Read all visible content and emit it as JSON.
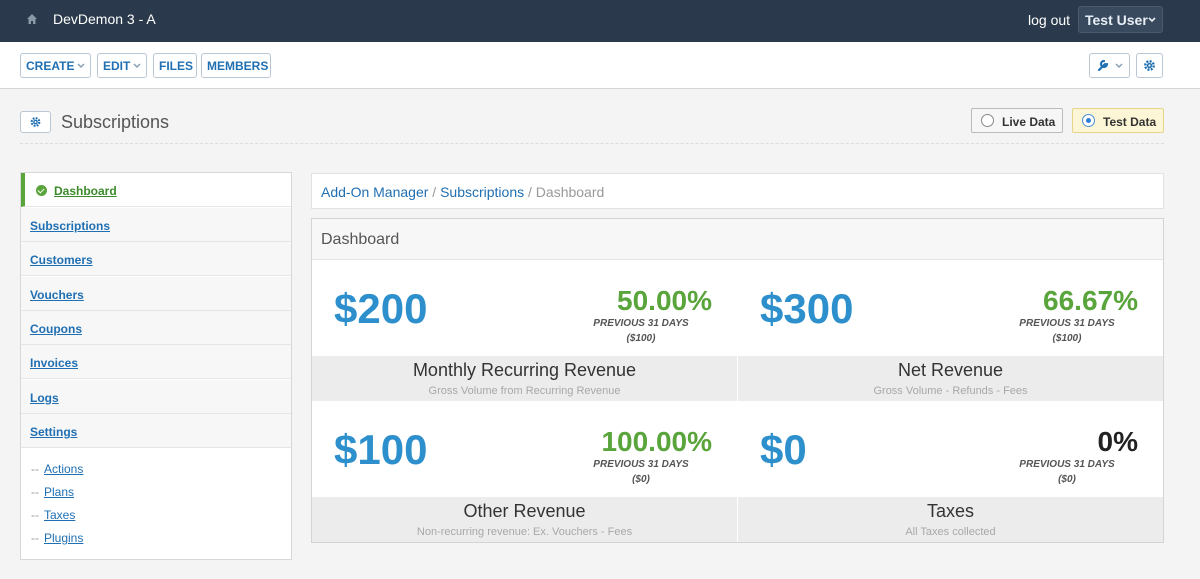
{
  "topbar": {
    "title": "DevDemon 3 - A",
    "logout_label": "log out",
    "user_label": "Test User"
  },
  "toolbar": {
    "create_label": "CREATE",
    "edit_label": "EDIT",
    "files_label": "FILES",
    "members_label": "MEMBERS"
  },
  "header": {
    "title": "Subscriptions",
    "live_label": "Live Data",
    "test_label": "Test Data",
    "selected": "Test Data"
  },
  "sidebar": {
    "items": [
      {
        "label": "Dashboard",
        "active": true
      },
      {
        "label": "Subscriptions"
      },
      {
        "label": "Customers"
      },
      {
        "label": "Vouchers"
      },
      {
        "label": "Coupons"
      },
      {
        "label": "Invoices"
      },
      {
        "label": "Logs"
      },
      {
        "label": "Settings"
      }
    ],
    "sub_items": [
      {
        "label": "Actions"
      },
      {
        "label": "Plans"
      },
      {
        "label": "Taxes"
      },
      {
        "label": "Plugins"
      }
    ]
  },
  "breadcrumb": {
    "part1": "Add-On Manager",
    "part2": "Subscriptions",
    "current": "Dashboard",
    "separator": "/"
  },
  "dashboard": {
    "title": "Dashboard",
    "cards": [
      {
        "amount": "$200",
        "percent": "50.00%",
        "period": "PREVIOUS 31 DAYS",
        "previous": "($100)",
        "title": "Monthly Recurring Revenue",
        "subtitle": "Gross Volume from Recurring Revenue",
        "percent_color": "#5aa43c"
      },
      {
        "amount": "$300",
        "percent": "66.67%",
        "period": "PREVIOUS 31 DAYS",
        "previous": "($100)",
        "title": "Net Revenue",
        "subtitle": "Gross Volume - Refunds - Fees",
        "percent_color": "#5aa43c"
      },
      {
        "amount": "$100",
        "percent": "100.00%",
        "period": "PREVIOUS 31 DAYS",
        "previous": "($0)",
        "title": "Other Revenue",
        "subtitle": "Non-recurring revenue: Ex. Vouchers - Fees",
        "percent_color": "#5aa43c"
      },
      {
        "amount": "$0",
        "percent": "0%",
        "period": "PREVIOUS 31 DAYS",
        "previous": "($0)",
        "title": "Taxes",
        "subtitle": "All Taxes collected",
        "percent_color": "#222222"
      }
    ]
  },
  "colors": {
    "topbar": "#2a3a4c",
    "accent": "#1f6fb2",
    "amount": "#2d90cc",
    "positive": "#5aa43c"
  }
}
